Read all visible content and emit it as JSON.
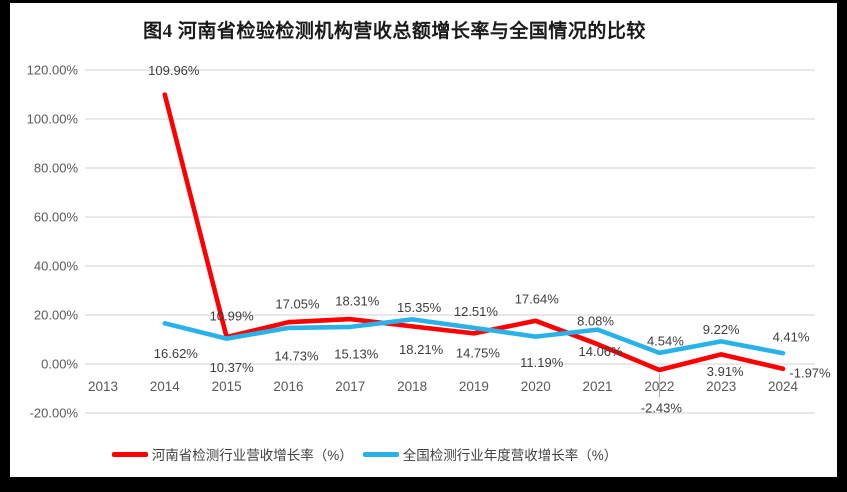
{
  "window": {
    "frame_color": "#000000",
    "background_color": "#ffffff"
  },
  "chart_data": {
    "type": "line",
    "title": "图4  河南省检验检测机构营收总额增长率与全国情况的比较",
    "categories": [
      "2013",
      "2014",
      "2015",
      "2016",
      "2017",
      "2018",
      "2019",
      "2020",
      "2021",
      "2022",
      "2023",
      "2024"
    ],
    "series": [
      {
        "name": "河南省检测行业营收增长率（%）",
        "color": "#fe0000",
        "values": [
          null,
          109.96,
          10.99,
          17.05,
          18.31,
          15.35,
          12.51,
          17.64,
          8.08,
          -2.43,
          3.91,
          -1.97
        ]
      },
      {
        "name": "全国检测行业年度营收增长率（%）",
        "color": "#29b2e8",
        "values": [
          null,
          16.62,
          10.37,
          14.73,
          15.13,
          18.21,
          14.75,
          11.19,
          14.06,
          4.54,
          9.22,
          4.41
        ]
      }
    ],
    "ylim": [
      -20,
      120
    ],
    "y_tick_step": 20,
    "y_ticks": [
      "120.00%",
      "100.00%",
      "80.00%",
      "60.00%",
      "40.00%",
      "20.00%",
      "0.00%",
      "-20.00%"
    ],
    "label_format": "0.00%",
    "grid": true,
    "legend_position": "bottom",
    "colors": {
      "gridline": "#d9d9d9",
      "axis_text": "#595959",
      "data_label_text": "#3d3d3d",
      "leader_line": "#a6a6a6"
    }
  }
}
